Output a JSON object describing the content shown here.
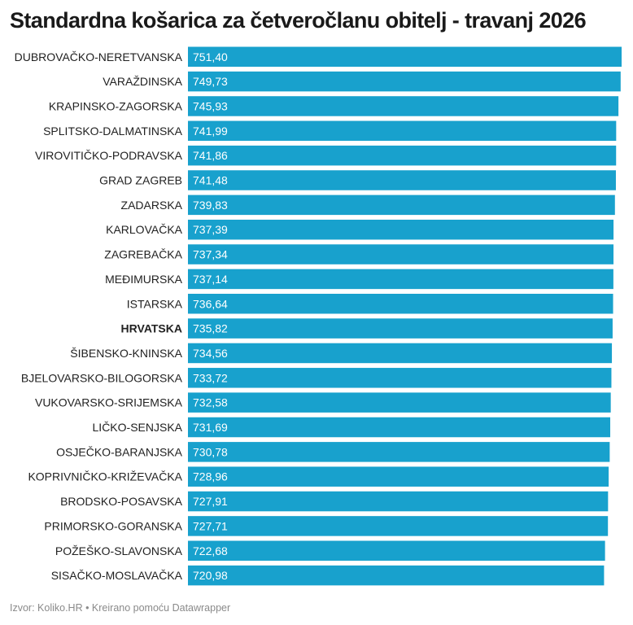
{
  "chart_data": {
    "type": "bar",
    "orientation": "horizontal",
    "title": "Standardna košarica za četveročlanu obitelj - travanj 2026",
    "xlabel": "",
    "ylabel": "",
    "categories": [
      "DUBROVAČKO-NERETVANSKA",
      "VARAŽDINSKA",
      "KRAPINSKO-ZAGORSKA",
      "SPLITSKO-DALMATINSKA",
      "VIROVITIČKO-PODRAVSKA",
      "GRAD ZAGREB",
      "ZADARSKA",
      "KARLOVAČKA",
      "ZAGREBAČKA",
      "MEĐIMURSKA",
      "ISTARSKA",
      "HRVATSKA",
      "ŠIBENSKO-KNINSKA",
      "BJELOVARSKO-BILOGORSKA",
      "VUKOVARSKO-SRIJEMSKA",
      "LIČKO-SENJSKA",
      "OSJEČKO-BARANJSKA",
      "KOPRIVNIČKO-KRIŽEVAČKA",
      "BRODSKO-POSAVSKA",
      "PRIMORSKO-GORANSKA",
      "POŽEŠKO-SLAVONSKA",
      "SISAČKO-MOSLAVAČKA"
    ],
    "values": [
      751.4,
      749.73,
      745.93,
      741.99,
      741.86,
      741.48,
      739.83,
      737.39,
      737.34,
      737.14,
      736.64,
      735.82,
      734.56,
      733.72,
      732.58,
      731.69,
      730.78,
      728.96,
      727.91,
      727.71,
      722.68,
      720.98
    ],
    "value_labels": [
      "751,40",
      "749,73",
      "745,93",
      "741,99",
      "741,86",
      "741,48",
      "739,83",
      "737,39",
      "737,34",
      "737,14",
      "736,64",
      "735,82",
      "734,56",
      "733,72",
      "732,58",
      "731,69",
      "730,78",
      "728,96",
      "727,91",
      "727,71",
      "722,68",
      "720,98"
    ],
    "highlight": "HRVATSKA",
    "xlim": [
      0,
      751.4
    ],
    "grid": false,
    "bar_color": "#18a1cd",
    "value_label_color": "#ffffff"
  },
  "footer": {
    "text": "Izvor: Koliko.HR • Kreirano pomoću Datawrapper"
  }
}
